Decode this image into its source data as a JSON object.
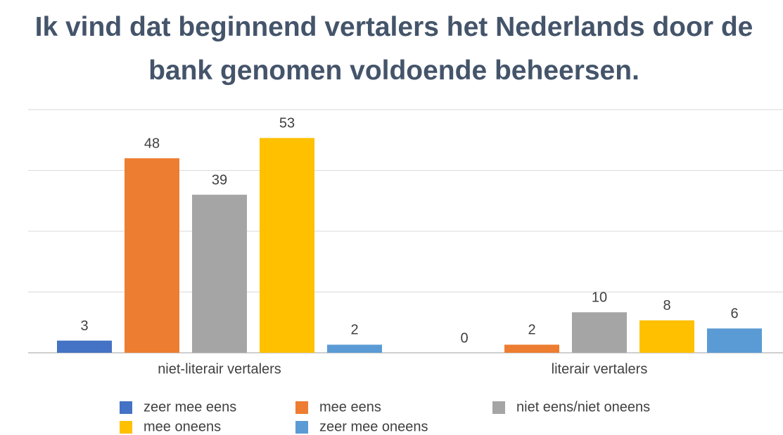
{
  "chart_data": {
    "type": "bar",
    "title": "Ik vind dat beginnend vertalers het Nederlands door de bank genomen voldoende beheersen.",
    "categories": [
      "niet-literair vertalers",
      "literair vertalers"
    ],
    "series": [
      {
        "name": "zeer mee eens",
        "color": "#4472c4",
        "values": [
          3,
          0
        ]
      },
      {
        "name": "mee eens",
        "color": "#ed7d31",
        "values": [
          48,
          2
        ]
      },
      {
        "name": "niet eens/niet oneens",
        "color": "#a5a5a5",
        "values": [
          39,
          10
        ]
      },
      {
        "name": "mee oneens",
        "color": "#ffc000",
        "values": [
          53,
          8
        ]
      },
      {
        "name": "zeer mee oneens",
        "color": "#5b9bd5",
        "values": [
          2,
          6
        ]
      }
    ],
    "ylim": [
      0,
      60
    ],
    "yticks": [
      0,
      15,
      30,
      45,
      60
    ],
    "grid": true,
    "legend": "bottom"
  }
}
